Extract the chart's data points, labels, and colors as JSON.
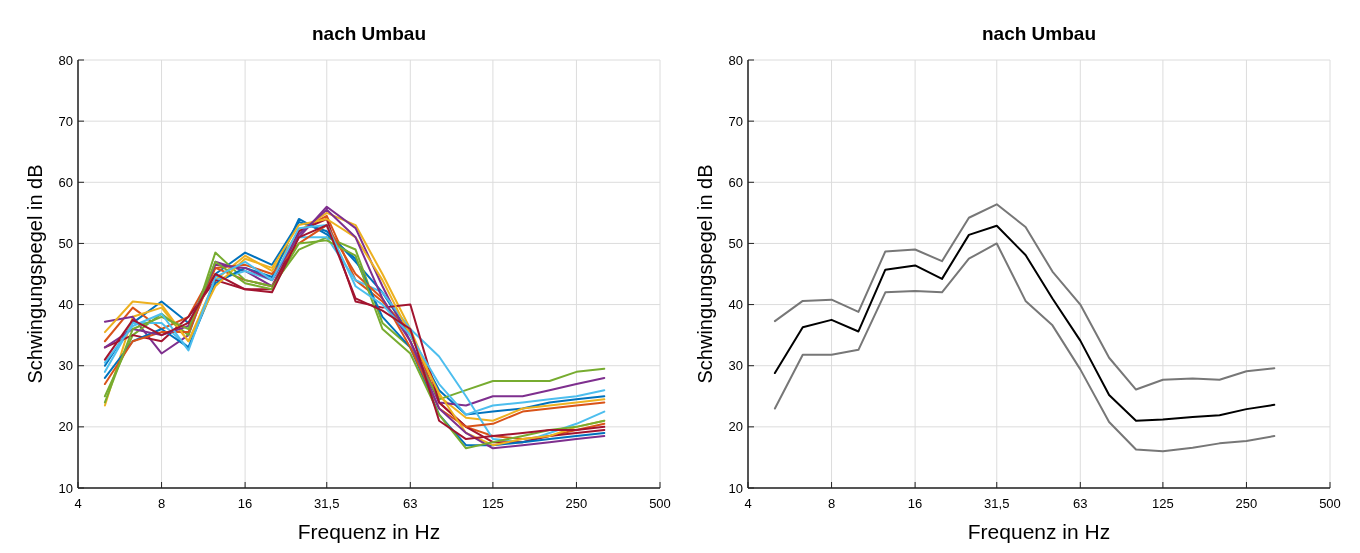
{
  "chart_data": [
    {
      "type": "line",
      "title": "nach Umbau",
      "xlabel": "Frequenz in Hz",
      "ylabel": "Schwingungspegel in dB",
      "log": "x",
      "grid": true,
      "line_style": "solid",
      "x": [
        5,
        6.3,
        8,
        10,
        12.5,
        16,
        20,
        25,
        31.5,
        40,
        50,
        63,
        80,
        100,
        125,
        160,
        200,
        250,
        315
      ],
      "xlim": [
        4,
        500
      ],
      "xticks": [
        4,
        8,
        16,
        {
          "value": 31.5,
          "label": "31,5"
        },
        63,
        125,
        250,
        500
      ],
      "ylim": [
        10,
        80
      ],
      "yticks": [
        10,
        20,
        30,
        40,
        50,
        60,
        70,
        80
      ],
      "series": [
        {
          "color": "#0072bd",
          "values": [
            30,
            37,
            40.5,
            37,
            45,
            48.5,
            46.5,
            53.5,
            52,
            47,
            42,
            35,
            26,
            22,
            22.5,
            23,
            24,
            24.5,
            25
          ]
        },
        {
          "color": "#d95319",
          "values": [
            34,
            39.5,
            36,
            38,
            46,
            44,
            43,
            52,
            54.5,
            44,
            40.5,
            35.5,
            24,
            20,
            18.5,
            18,
            18.5,
            19.5,
            20.5
          ]
        },
        {
          "color": "#edb120",
          "values": [
            23.5,
            38,
            39.5,
            34,
            44,
            48,
            45.5,
            52,
            55,
            53,
            45,
            36,
            25,
            21.5,
            21,
            23,
            23.5,
            24,
            24.5
          ]
        },
        {
          "color": "#7e2f8e",
          "values": [
            37.2,
            38,
            32,
            35,
            47,
            45.5,
            43,
            51,
            56,
            52.5,
            43,
            34,
            24,
            23.5,
            25,
            25,
            26,
            27,
            28
          ]
        },
        {
          "color": "#77ac30",
          "values": [
            25,
            35,
            38.5,
            35,
            48.5,
            44,
            43,
            49,
            51,
            49,
            37,
            33,
            24.5,
            26,
            27.5,
            27.5,
            27.5,
            29,
            29.5
          ]
        },
        {
          "color": "#4dbeee",
          "values": [
            29,
            37,
            37,
            33,
            44,
            45.5,
            44,
            51,
            51,
            44,
            42,
            36,
            31.5,
            25,
            18,
            17.5,
            19,
            20.5,
            22.5
          ]
        },
        {
          "color": "#a2142f",
          "values": [
            33,
            35,
            34,
            38,
            44,
            42.5,
            42.5,
            52,
            54,
            40.5,
            39.5,
            40,
            24,
            20,
            17.5,
            17.5,
            18.5,
            19,
            19.5
          ]
        },
        {
          "color": "#0072bd",
          "values": [
            28,
            34,
            36,
            33,
            43.5,
            46,
            44.5,
            54,
            51.5,
            47.5,
            38,
            33,
            22,
            17,
            17,
            17.5,
            18,
            18.5,
            19
          ]
        },
        {
          "color": "#d95319",
          "values": [
            27,
            34,
            35.5,
            35.5,
            46,
            46.5,
            45,
            50,
            53,
            45,
            41,
            33,
            23,
            20,
            20.5,
            22.5,
            23,
            23.5,
            24
          ]
        },
        {
          "color": "#edb120",
          "values": [
            35.5,
            40.5,
            40,
            34,
            43,
            47.5,
            46,
            53,
            54,
            51,
            44,
            35,
            25.5,
            19,
            17,
            18,
            18.5,
            20,
            21
          ]
        },
        {
          "color": "#7e2f8e",
          "values": [
            33,
            36,
            35,
            36.5,
            46.5,
            46,
            44,
            51.5,
            55.5,
            51,
            41,
            34,
            23,
            19,
            16.5,
            17,
            17.5,
            18,
            18.5
          ]
        },
        {
          "color": "#77ac30",
          "values": [
            24,
            36,
            38,
            36,
            47,
            43.5,
            42.5,
            50,
            50.5,
            48,
            36,
            32,
            22,
            16.5,
            17.5,
            18.5,
            19.5,
            20,
            21
          ]
        },
        {
          "color": "#4dbeee",
          "values": [
            30.5,
            36.5,
            38.5,
            32.5,
            44.5,
            47,
            44,
            52.5,
            53,
            43,
            40,
            35,
            27,
            22,
            23.5,
            24,
            24.5,
            25,
            26
          ]
        },
        {
          "color": "#a2142f",
          "values": [
            31,
            37.5,
            35,
            37,
            45,
            42.5,
            42,
            51,
            53,
            41,
            39,
            36,
            21,
            18,
            18.5,
            19,
            19.5,
            19.5,
            20
          ]
        }
      ]
    },
    {
      "type": "line",
      "title": "nach Umbau",
      "xlabel": "Frequenz in Hz",
      "ylabel": "Schwingungspegel in dB",
      "log": "x",
      "grid": true,
      "line_style": "solid",
      "x": [
        5,
        6.3,
        8,
        10,
        12.5,
        16,
        20,
        25,
        31.5,
        40,
        50,
        63,
        80,
        100,
        125,
        160,
        200,
        250,
        315
      ],
      "xlim": [
        4,
        500
      ],
      "xticks": [
        4,
        8,
        16,
        {
          "value": 31.5,
          "label": "31,5"
        },
        63,
        125,
        250,
        500
      ],
      "ylim": [
        10,
        80
      ],
      "yticks": [
        10,
        20,
        30,
        40,
        50,
        60,
        70,
        80
      ],
      "series": [
        {
          "color": "#777777",
          "values": [
            37.3,
            40.6,
            40.8,
            38.8,
            48.7,
            49.0,
            47.1,
            54.2,
            56.4,
            52.7,
            45.4,
            40.0,
            31.3,
            26.1,
            27.7,
            27.9,
            27.7,
            29.1,
            29.6
          ]
        },
        {
          "color": "#777777",
          "values": [
            23.0,
            31.8,
            31.8,
            32.6,
            42.0,
            42.2,
            42.0,
            47.5,
            50.0,
            40.6,
            36.6,
            29.4,
            20.8,
            16.3,
            16.0,
            16.6,
            17.3,
            17.7,
            18.5
          ]
        },
        {
          "color": "#000000",
          "values": [
            28.8,
            36.3,
            37.5,
            35.6,
            45.7,
            46.4,
            44.2,
            51.4,
            52.9,
            48.1,
            41.0,
            34.1,
            25.2,
            21.0,
            21.2,
            21.6,
            21.9,
            22.9,
            23.6
          ]
        }
      ]
    }
  ]
}
